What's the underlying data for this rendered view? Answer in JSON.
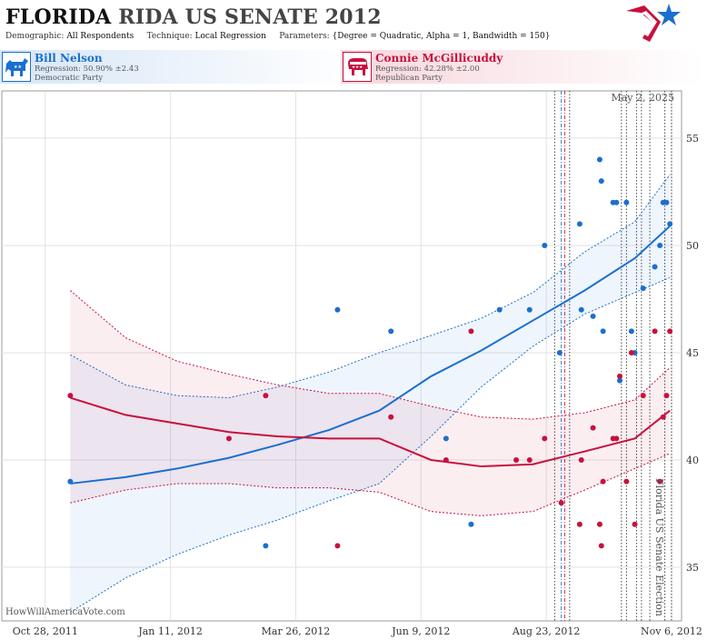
{
  "header": {
    "title_main": "FLORIDA",
    "title_sub": "RIDA US SENATE 2012",
    "demographic_label": "Demographic:",
    "demographic_value": "All Respondents",
    "technique_label": "Technique:",
    "technique_value": "Local Regression",
    "parameters_label": "Parameters:",
    "parameters_value": "{Degree = Quadratic, Alpha = 1, Bandwidth = 150}"
  },
  "candidates": [
    {
      "name": "Bill Nelson",
      "regression": "Regression: 50.90% ±2.43",
      "party": "Democratic Party",
      "color": "#1a6fcf",
      "icon": "donkey-icon"
    },
    {
      "name": "Connie McGillicuddy",
      "regression": "Regression: 42.28% ±2.00",
      "party": "Republican Party",
      "color": "#c8103e",
      "icon": "elephant-icon"
    }
  ],
  "watermark": "HowWillAmericaVote.com",
  "chart_data": {
    "type": "scatter",
    "date_label": "May 2, 2025",
    "event_label": "Florida US Senate Election",
    "x_domain": [
      "2011-10-02",
      "2012-11-12"
    ],
    "y_domain": [
      32.5,
      57.2
    ],
    "x_ticks": [
      {
        "date": "2011-10-28",
        "label": "Oct 28, 2011"
      },
      {
        "date": "2012-01-11",
        "label": "Jan 11, 2012"
      },
      {
        "date": "2012-03-26",
        "label": "Mar 26, 2012"
      },
      {
        "date": "2012-06-09",
        "label": "Jun 9, 2012"
      },
      {
        "date": "2012-08-23",
        "label": "Aug 23, 2012"
      },
      {
        "date": "2012-11-06",
        "label": "Nov 6, 2012"
      }
    ],
    "y_ticks": [
      35,
      40,
      45,
      50,
      55
    ],
    "vlines": [
      {
        "date": "2012-08-28",
        "color": "#333333",
        "style": "dotted"
      },
      {
        "date": "2012-09-01",
        "color": "#1a6fcf",
        "style": "dash-dot"
      },
      {
        "date": "2012-09-03",
        "color": "#c8103e",
        "style": "dash-dot"
      },
      {
        "date": "2012-09-06",
        "color": "#333333",
        "style": "dotted"
      },
      {
        "date": "2012-10-07",
        "color": "#333333",
        "style": "dotted"
      },
      {
        "date": "2012-10-10",
        "color": "#333333",
        "style": "dotted"
      },
      {
        "date": "2012-10-16",
        "color": "#333333",
        "style": "dotted"
      },
      {
        "date": "2012-10-19",
        "color": "#333333",
        "style": "dotted"
      },
      {
        "date": "2012-10-24",
        "color": "#333333",
        "style": "dotted"
      },
      {
        "date": "2012-11-02",
        "color": "#333333",
        "style": "dotted"
      },
      {
        "date": "2012-11-06",
        "color": "#333333",
        "style": "dotted"
      }
    ],
    "series": [
      {
        "name": "Bill Nelson",
        "color": "#1a6fcf",
        "points": [
          [
            "2011-11-12",
            39
          ],
          [
            "2012-03-08",
            36
          ],
          [
            "2012-04-20",
            47
          ],
          [
            "2012-05-22",
            46
          ],
          [
            "2012-06-24",
            41
          ],
          [
            "2012-07-09",
            37
          ],
          [
            "2012-07-26",
            47
          ],
          [
            "2012-08-13",
            47
          ],
          [
            "2012-08-22",
            50
          ],
          [
            "2012-08-31",
            45
          ],
          [
            "2012-09-12",
            51
          ],
          [
            "2012-09-13",
            47
          ],
          [
            "2012-09-20",
            46.7
          ],
          [
            "2012-09-24",
            54
          ],
          [
            "2012-09-26",
            46
          ],
          [
            "2012-09-25",
            53
          ],
          [
            "2012-10-02",
            52
          ],
          [
            "2012-10-04",
            52
          ],
          [
            "2012-10-06",
            43.7
          ],
          [
            "2012-10-10",
            52
          ],
          [
            "2012-10-13",
            46
          ],
          [
            "2012-10-15",
            45
          ],
          [
            "2012-10-20",
            48
          ],
          [
            "2012-10-27",
            49
          ],
          [
            "2012-10-30",
            50
          ],
          [
            "2012-11-01",
            52
          ],
          [
            "2012-11-03",
            52
          ],
          [
            "2012-11-05",
            51
          ]
        ],
        "fit": [
          [
            "2011-11-12",
            38.9
          ],
          [
            "2011-12-15",
            39.2
          ],
          [
            "2012-01-15",
            39.6
          ],
          [
            "2012-02-15",
            40.1
          ],
          [
            "2012-03-15",
            40.7
          ],
          [
            "2012-04-15",
            41.4
          ],
          [
            "2012-05-15",
            42.3
          ],
          [
            "2012-06-15",
            43.9
          ],
          [
            "2012-07-15",
            45.1
          ],
          [
            "2012-08-15",
            46.5
          ],
          [
            "2012-09-15",
            47.9
          ],
          [
            "2012-10-15",
            49.4
          ],
          [
            "2012-11-05",
            50.9
          ]
        ],
        "band_upper": [
          [
            "2011-11-12",
            44.9
          ],
          [
            "2011-12-15",
            43.5
          ],
          [
            "2012-01-15",
            43.0
          ],
          [
            "2012-02-15",
            42.9
          ],
          [
            "2012-03-15",
            43.4
          ],
          [
            "2012-04-15",
            44.1
          ],
          [
            "2012-05-15",
            45.0
          ],
          [
            "2012-06-15",
            45.8
          ],
          [
            "2012-07-15",
            46.6
          ],
          [
            "2012-08-15",
            47.8
          ],
          [
            "2012-09-15",
            49.7
          ],
          [
            "2012-10-15",
            51.1
          ],
          [
            "2012-11-05",
            53.3
          ]
        ],
        "band_lower": [
          [
            "2011-11-12",
            32.9
          ],
          [
            "2011-12-15",
            34.5
          ],
          [
            "2012-01-15",
            35.6
          ],
          [
            "2012-02-15",
            36.5
          ],
          [
            "2012-03-15",
            37.2
          ],
          [
            "2012-04-15",
            38.1
          ],
          [
            "2012-05-15",
            38.9
          ],
          [
            "2012-06-15",
            41.1
          ],
          [
            "2012-07-15",
            43.4
          ],
          [
            "2012-08-15",
            45.3
          ],
          [
            "2012-09-15",
            46.8
          ],
          [
            "2012-10-15",
            47.8
          ],
          [
            "2012-11-05",
            48.5
          ]
        ]
      },
      {
        "name": "Connie McGillicuddy",
        "color": "#c8103e",
        "points": [
          [
            "2011-11-12",
            43
          ],
          [
            "2012-02-15",
            41
          ],
          [
            "2012-03-08",
            43
          ],
          [
            "2012-04-20",
            36
          ],
          [
            "2012-05-22",
            42
          ],
          [
            "2012-06-24",
            40
          ],
          [
            "2012-07-09",
            46
          ],
          [
            "2012-08-05",
            40
          ],
          [
            "2012-08-13",
            40
          ],
          [
            "2012-08-22",
            41
          ],
          [
            "2012-09-01",
            38
          ],
          [
            "2012-09-12",
            37
          ],
          [
            "2012-09-13",
            40
          ],
          [
            "2012-09-20",
            41.5
          ],
          [
            "2012-09-24",
            37
          ],
          [
            "2012-09-26",
            39
          ],
          [
            "2012-09-25",
            36
          ],
          [
            "2012-10-02",
            41
          ],
          [
            "2012-10-04",
            41
          ],
          [
            "2012-10-06",
            43.9
          ],
          [
            "2012-10-10",
            39
          ],
          [
            "2012-10-13",
            45
          ],
          [
            "2012-10-15",
            37
          ],
          [
            "2012-10-20",
            43
          ],
          [
            "2012-10-27",
            46
          ],
          [
            "2012-10-30",
            39
          ],
          [
            "2012-11-01",
            42
          ],
          [
            "2012-11-03",
            43
          ],
          [
            "2012-11-05",
            46
          ]
        ],
        "fit": [
          [
            "2011-11-12",
            42.9
          ],
          [
            "2011-12-15",
            42.1
          ],
          [
            "2012-01-15",
            41.7
          ],
          [
            "2012-02-15",
            41.3
          ],
          [
            "2012-03-15",
            41.1
          ],
          [
            "2012-04-15",
            41.0
          ],
          [
            "2012-05-15",
            41.0
          ],
          [
            "2012-06-15",
            40.0
          ],
          [
            "2012-07-15",
            39.7
          ],
          [
            "2012-08-15",
            39.8
          ],
          [
            "2012-09-15",
            40.4
          ],
          [
            "2012-10-15",
            41.0
          ],
          [
            "2012-11-05",
            42.3
          ]
        ],
        "band_upper": [
          [
            "2011-11-12",
            47.9
          ],
          [
            "2011-12-15",
            45.7
          ],
          [
            "2012-01-15",
            44.6
          ],
          [
            "2012-02-15",
            44.0
          ],
          [
            "2012-03-15",
            43.5
          ],
          [
            "2012-04-15",
            43.1
          ],
          [
            "2012-05-15",
            43.1
          ],
          [
            "2012-06-15",
            42.5
          ],
          [
            "2012-07-15",
            42.0
          ],
          [
            "2012-08-15",
            41.9
          ],
          [
            "2012-09-15",
            42.2
          ],
          [
            "2012-10-15",
            42.8
          ],
          [
            "2012-11-05",
            44.3
          ]
        ],
        "band_lower": [
          [
            "2011-11-12",
            38.0
          ],
          [
            "2011-12-15",
            38.6
          ],
          [
            "2012-01-15",
            38.9
          ],
          [
            "2012-02-15",
            38.9
          ],
          [
            "2012-03-15",
            38.7
          ],
          [
            "2012-04-15",
            38.7
          ],
          [
            "2012-05-15",
            38.5
          ],
          [
            "2012-06-15",
            37.6
          ],
          [
            "2012-07-15",
            37.4
          ],
          [
            "2012-08-15",
            37.6
          ],
          [
            "2012-09-15",
            38.6
          ],
          [
            "2012-10-15",
            39.6
          ],
          [
            "2012-11-05",
            40.3
          ]
        ]
      }
    ]
  }
}
